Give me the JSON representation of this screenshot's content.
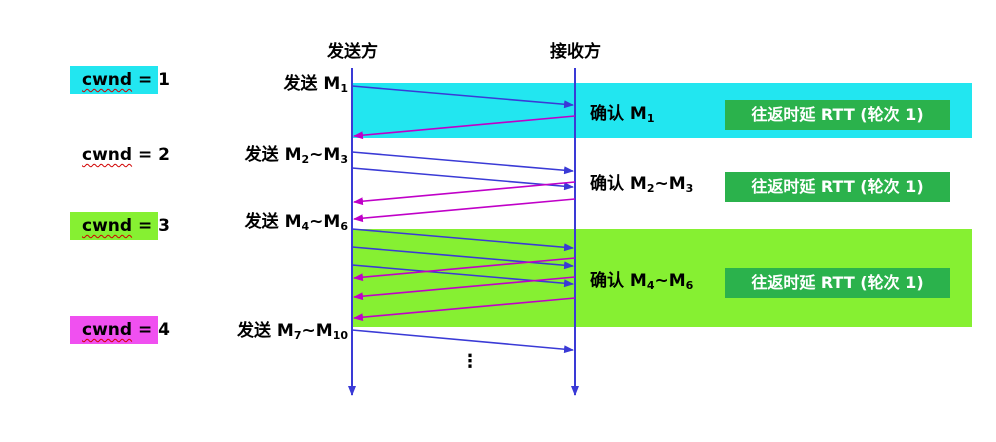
{
  "headers": {
    "sender": "发送方",
    "receiver": "接收方"
  },
  "colors": {
    "cyan": "#22e6f0",
    "green": "#86f032",
    "magenta": "#f050f0",
    "rtt_box": "#2bb24c",
    "data_arrow": "#3a3ad6",
    "ack_arrow": "#c000c8",
    "timeline": "#3a3ad6"
  },
  "cwnd": [
    {
      "word": "cwnd",
      "eq": "=",
      "value": "1",
      "highlight": "cyan"
    },
    {
      "word": "cwnd",
      "eq": "=",
      "value": "2",
      "highlight": "none"
    },
    {
      "word": "cwnd",
      "eq": "=",
      "value": "3",
      "highlight": "green"
    },
    {
      "word": "cwnd",
      "eq": "=",
      "value": "4",
      "highlight": "magenta"
    }
  ],
  "sends": [
    {
      "prefix": "发送 M",
      "a": "1",
      "sep": "",
      "b_prefix": "",
      "b": ""
    },
    {
      "prefix": "发送 M",
      "a": "2",
      "sep": "~",
      "b_prefix": "M",
      "b": "3"
    },
    {
      "prefix": "发送 M",
      "a": "4",
      "sep": "~",
      "b_prefix": "M",
      "b": "6"
    },
    {
      "prefix": "发送 M",
      "a": "7",
      "sep": "~",
      "b_prefix": "M",
      "b": "10"
    }
  ],
  "acks": [
    {
      "prefix": "确认 M",
      "a": "1",
      "sep": "",
      "b_prefix": "",
      "b": ""
    },
    {
      "prefix": "确认 M",
      "a": "2",
      "sep": "~",
      "b_prefix": "M",
      "b": "3"
    },
    {
      "prefix": "确认 M",
      "a": "4",
      "sep": "~",
      "b_prefix": "M",
      "b": "6"
    }
  ],
  "rtt_labels": [
    "往返时延 RTT (轮次 1)",
    "往返时延 RTT (轮次 1)",
    "往返时延 RTT (轮次 1)"
  ],
  "ellipsis": "⋮"
}
